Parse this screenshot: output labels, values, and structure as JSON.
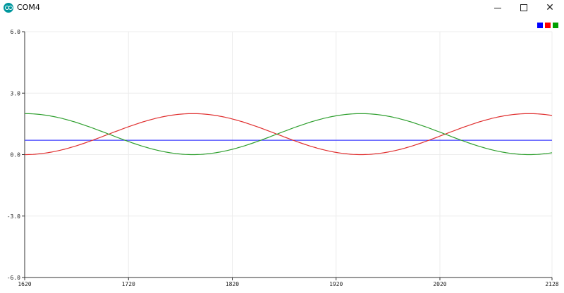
{
  "window": {
    "title": "COM4",
    "icon": "arduino-icon"
  },
  "chart_data": {
    "type": "line",
    "x_range": [
      1620,
      2128
    ],
    "ylim": [
      -6.0,
      6.0
    ],
    "y_ticks": [
      "6.0",
      "3.0",
      "0.0",
      "-3.0",
      "-6.0"
    ],
    "y_tick_values": [
      6.0,
      3.0,
      0.0,
      -3.0,
      -6.0
    ],
    "x_ticks": [
      "1620",
      "1720",
      "1820",
      "1920",
      "2020",
      "2128"
    ],
    "x_tick_values": [
      1620,
      1720,
      1820,
      1920,
      2020,
      2128
    ],
    "grid": true,
    "legend_colors": [
      "#0000ff",
      "#ff0000",
      "#00a000"
    ],
    "series": [
      {
        "color": "#4040ff",
        "kind": "constant",
        "value": 0.7
      },
      {
        "color": "#e03030",
        "kind": "sine",
        "offset": 1.0,
        "amplitude": -1.0,
        "phase_x": 1620,
        "period": 324
      },
      {
        "color": "#30a030",
        "kind": "sine",
        "offset": 1.0,
        "amplitude": 1.0,
        "phase_x": 1620,
        "period": 324
      }
    ]
  }
}
